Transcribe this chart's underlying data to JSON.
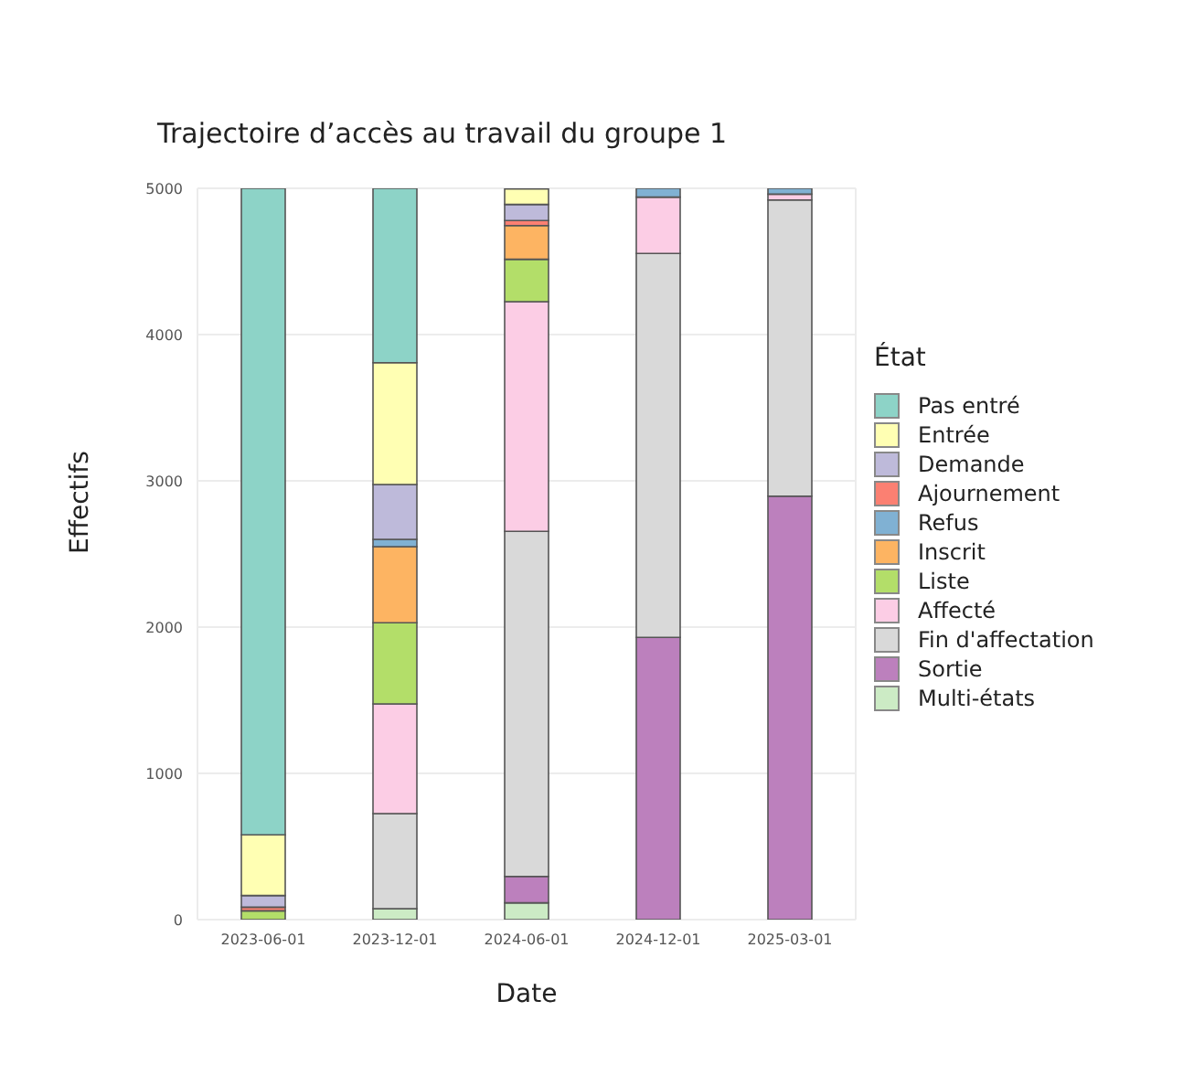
{
  "chart_data": {
    "type": "bar",
    "title": "Trajectoire d’accès au travail du groupe 1",
    "xlabel": "Date",
    "ylabel": "Effectifs",
    "legend_title": "État",
    "categories": [
      "2023-06-01",
      "2023-12-01",
      "2024-06-01",
      "2024-12-01",
      "2025-03-01"
    ],
    "stacked": true,
    "legend": "right",
    "grid": true,
    "ylim": [
      0,
      5000
    ],
    "yticks": [
      0,
      1000,
      2000,
      3000,
      4000,
      5000
    ],
    "series": [
      {
        "name": "Multi-états",
        "color": "#ccebc5",
        "values": [
          null,
          75,
          115,
          null,
          null
        ]
      },
      {
        "name": "Sortie",
        "color": "#bc80bd",
        "values": [
          null,
          null,
          180,
          1930,
          2895
        ]
      },
      {
        "name": "Fin d'affectation",
        "color": "#d9d9d9",
        "values": [
          null,
          650,
          2360,
          2625,
          2025
        ]
      },
      {
        "name": "Affecté",
        "color": "#fccde5",
        "values": [
          null,
          750,
          1570,
          385,
          40
        ]
      },
      {
        "name": "Liste",
        "color": "#b3de69",
        "values": [
          60,
          555,
          290,
          null,
          null
        ]
      },
      {
        "name": "Inscrit",
        "color": "#fdb462",
        "values": [
          null,
          520,
          230,
          null,
          null
        ]
      },
      {
        "name": "Refus",
        "color": "#80b1d3",
        "values": [
          null,
          50,
          null,
          60,
          40
        ]
      },
      {
        "name": "Ajournement",
        "color": "#fb8072",
        "values": [
          25,
          null,
          35,
          null,
          null
        ]
      },
      {
        "name": "Demande",
        "color": "#bebada",
        "values": [
          80,
          375,
          110,
          null,
          null
        ]
      },
      {
        "name": "Entrée",
        "color": "#ffffb3",
        "values": [
          415,
          833,
          105,
          null,
          null
        ]
      },
      {
        "name": "Pas entré",
        "color": "#8dd3c7",
        "values": [
          4420,
          1192,
          null,
          null,
          null
        ]
      }
    ]
  }
}
